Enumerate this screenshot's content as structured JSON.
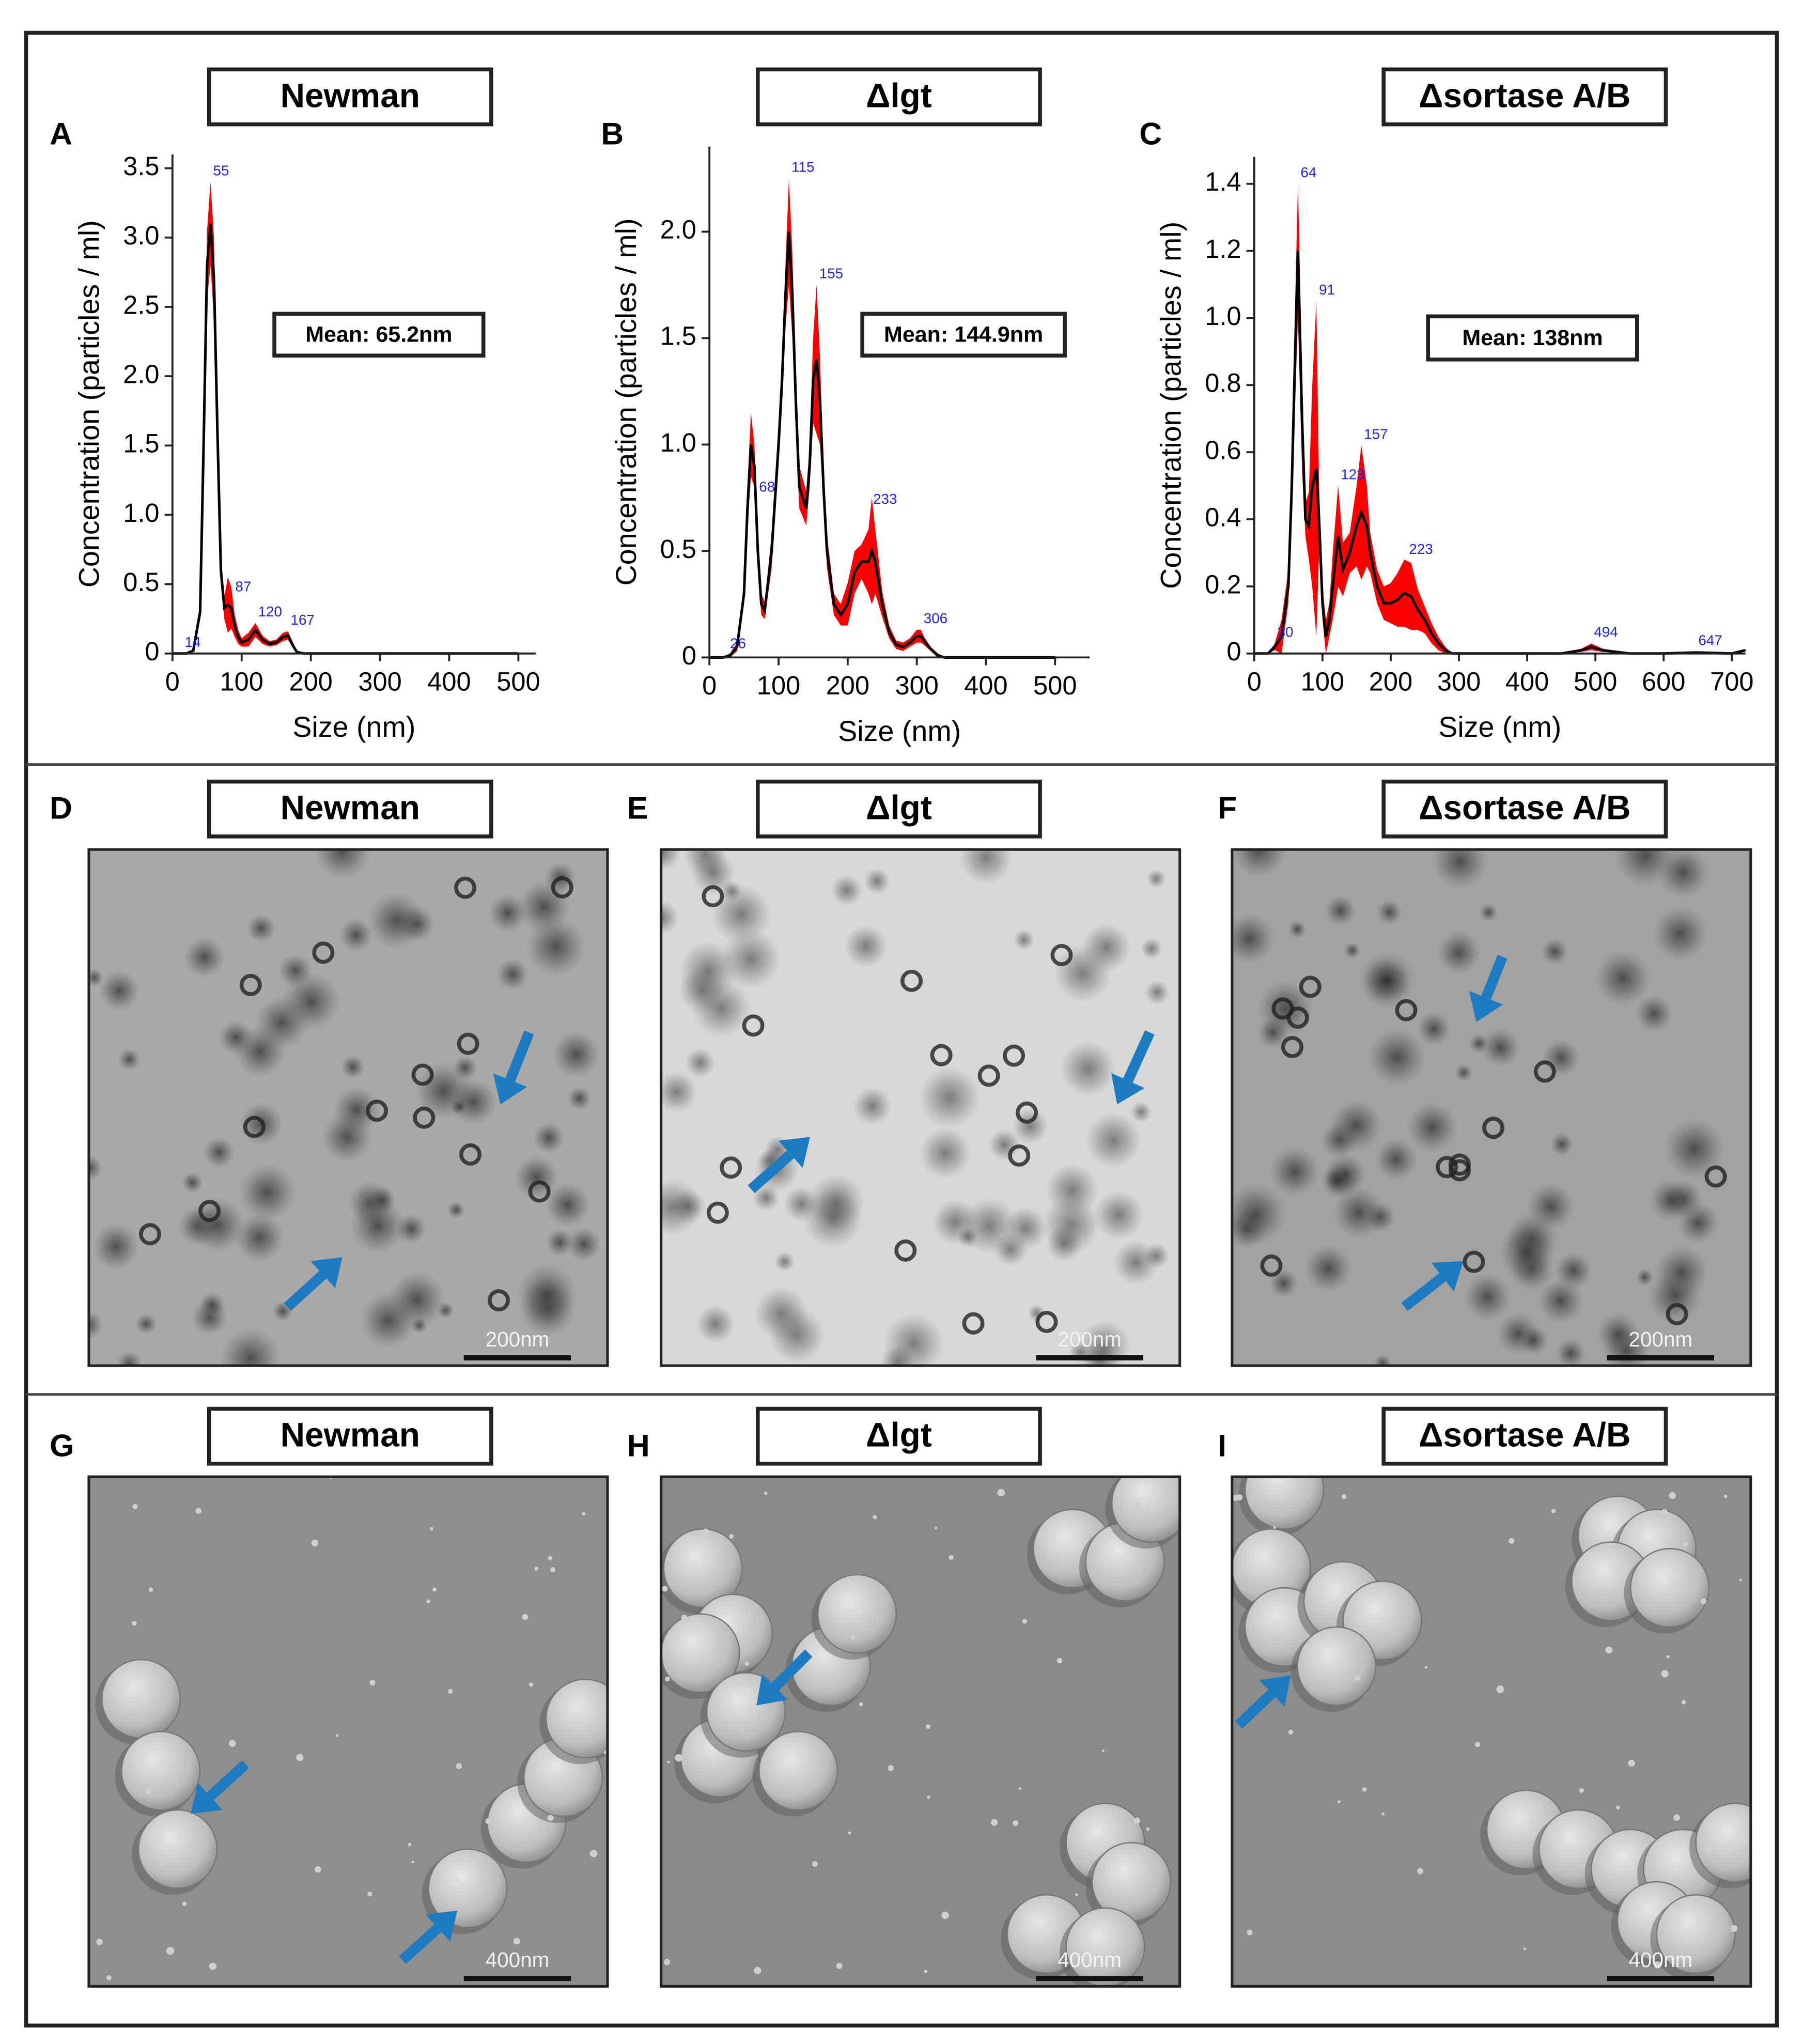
{
  "chart_data": [
    {
      "type": "line",
      "panel": "A",
      "title": "Newman",
      "annotation": "Mean: 65.2nm",
      "x_label": "Size (nm)",
      "y_label": "Concentration (particles / ml)",
      "x": [
        0,
        20,
        30,
        40,
        45,
        50,
        55,
        60,
        65,
        70,
        75,
        80,
        85,
        90,
        95,
        100,
        110,
        120,
        130,
        140,
        150,
        160,
        167,
        175,
        180,
        190,
        200,
        220,
        250,
        300,
        400,
        500
      ],
      "series": [
        {
          "color": "#000000",
          "error_color": "#ff0000",
          "values": [
            0,
            0,
            0.02,
            0.3,
            1.5,
            2.8,
            3.1,
            2.7,
            1.6,
            0.6,
            0.33,
            0.35,
            0.33,
            0.2,
            0.12,
            0.08,
            0.1,
            0.17,
            0.1,
            0.07,
            0.08,
            0.12,
            0.13,
            0.05,
            0.01,
            0,
            0,
            0,
            0,
            0,
            0,
            0
          ],
          "errors": [
            0,
            0,
            0.01,
            0.05,
            0.12,
            0.25,
            0.3,
            0.3,
            0.2,
            0.1,
            0.08,
            0.2,
            0.15,
            0.08,
            0.05,
            0.03,
            0.05,
            0.05,
            0.03,
            0.02,
            0.02,
            0.03,
            0.03,
            0.02,
            0.01,
            0,
            0,
            0,
            0,
            0,
            0,
            0
          ]
        }
      ],
      "peaks": [
        14,
        55,
        87,
        120,
        167
      ],
      "peak_color": "#2323e8",
      "xlim": [
        0,
        525
      ],
      "xticks": [
        0,
        100,
        200,
        300,
        400,
        500
      ],
      "ylim": [
        0,
        3.6
      ],
      "yticks": [
        0,
        0.5,
        {
          "value": 1,
          "label": "1.0"
        },
        1.5,
        {
          "value": 2,
          "label": "2.0"
        },
        2.5,
        {
          "value": 3,
          "label": "3.0"
        },
        3.5
      ]
    },
    {
      "type": "line",
      "panel": "B",
      "title": "Δlgt",
      "annotation": "Mean: 144.9nm",
      "x_label": "Size (nm)",
      "y_label": "Concentration (particles / ml)",
      "x": [
        0,
        20,
        30,
        40,
        50,
        55,
        60,
        65,
        70,
        75,
        80,
        90,
        100,
        105,
        110,
        115,
        120,
        125,
        130,
        140,
        145,
        150,
        155,
        160,
        165,
        170,
        180,
        190,
        200,
        210,
        220,
        230,
        235,
        240,
        250,
        260,
        270,
        280,
        290,
        300,
        306,
        310,
        320,
        330,
        340,
        400,
        500
      ],
      "series": [
        {
          "color": "#000000",
          "error_color": "#ff0000",
          "values": [
            0,
            0,
            0.01,
            0.05,
            0.3,
            0.7,
            1.0,
            0.9,
            0.5,
            0.25,
            0.22,
            0.5,
            1.0,
            1.3,
            1.7,
            2.0,
            1.7,
            1.2,
            0.8,
            0.7,
            0.9,
            1.3,
            1.4,
            1.2,
            0.8,
            0.5,
            0.25,
            0.2,
            0.25,
            0.4,
            0.45,
            0.45,
            0.5,
            0.45,
            0.25,
            0.12,
            0.06,
            0.05,
            0.07,
            0.1,
            0.1,
            0.08,
            0.04,
            0.01,
            0,
            0,
            0
          ],
          "errors": [
            0,
            0,
            0.01,
            0.02,
            0.05,
            0.1,
            0.15,
            0.1,
            0.08,
            0.05,
            0.04,
            0.08,
            0.1,
            0.12,
            0.15,
            0.25,
            0.2,
            0.15,
            0.1,
            0.08,
            0.1,
            0.2,
            0.35,
            0.2,
            0.1,
            0.08,
            0.05,
            0.05,
            0.1,
            0.1,
            0.08,
            0.15,
            0.25,
            0.15,
            0.06,
            0.03,
            0.02,
            0.02,
            0.02,
            0.03,
            0.03,
            0.02,
            0.01,
            0.01,
            0,
            0,
            0
          ]
        }
      ],
      "peaks": [
        26,
        68,
        115,
        155,
        233,
        306
      ],
      "peak_color": "#2323e8",
      "xlim": [
        0,
        550
      ],
      "xticks": [
        0,
        100,
        200,
        300,
        400,
        500
      ],
      "ylim": [
        0,
        2.4
      ],
      "yticks": [
        0,
        0.5,
        {
          "value": 1,
          "label": "1.0"
        },
        1.5,
        {
          "value": 2,
          "label": "2.0"
        }
      ]
    },
    {
      "type": "line",
      "panel": "C",
      "title": "Δsortase A/B",
      "annotation": "Mean: 138nm",
      "x_label": "Size (nm)",
      "y_label": "Concentration (particles / ml)",
      "x": [
        0,
        20,
        30,
        40,
        50,
        55,
        60,
        64,
        70,
        75,
        80,
        85,
        91,
        95,
        100,
        105,
        110,
        115,
        123,
        130,
        140,
        150,
        157,
        165,
        170,
        180,
        190,
        200,
        210,
        220,
        230,
        240,
        250,
        260,
        270,
        280,
        290,
        300,
        310,
        350,
        400,
        450,
        480,
        494,
        510,
        550,
        600,
        647,
        700,
        720
      ],
      "series": [
        {
          "color": "#000000",
          "error_color": "#ff0000",
          "values": [
            0,
            0,
            0.02,
            0.05,
            0.2,
            0.5,
            0.9,
            1.2,
            0.7,
            0.4,
            0.38,
            0.5,
            0.55,
            0.4,
            0.15,
            0.05,
            0.1,
            0.2,
            0.35,
            0.25,
            0.3,
            0.38,
            0.42,
            0.38,
            0.3,
            0.2,
            0.15,
            0.15,
            0.16,
            0.18,
            0.17,
            0.13,
            0.1,
            0.06,
            0.03,
            0.01,
            0,
            0,
            0,
            0,
            0,
            0,
            0.01,
            0.02,
            0.01,
            0,
            0,
            0.003,
            0,
            0.01
          ],
          "errors": [
            0,
            0,
            0.01,
            0.05,
            0.05,
            0.1,
            0.15,
            0.2,
            0.15,
            0.05,
            0.1,
            0.3,
            0.5,
            0.1,
            0.05,
            0.05,
            0.05,
            0.1,
            0.15,
            0.08,
            0.06,
            0.12,
            0.2,
            0.12,
            0.06,
            0.05,
            0.05,
            0.06,
            0.08,
            0.1,
            0.1,
            0.06,
            0.04,
            0.03,
            0.02,
            0.01,
            0,
            0,
            0,
            0,
            0,
            0,
            0.005,
            0.01,
            0.005,
            0,
            0,
            0.002,
            0,
            0
          ]
        }
      ],
      "peaks": [
        30,
        64,
        91,
        123,
        157,
        223,
        494,
        647
      ],
      "peak_color": "#2323e8",
      "xlim": [
        0,
        720
      ],
      "xticks": [
        0,
        100,
        200,
        300,
        400,
        500,
        600,
        700
      ],
      "ylim": [
        0,
        1.48
      ],
      "yticks": [
        0,
        0.2,
        0.4,
        0.6,
        0.8,
        {
          "value": 1,
          "label": "1.0"
        },
        1.2,
        1.4
      ]
    }
  ],
  "micrograph_rows": [
    {
      "panels": [
        {
          "panel": "D",
          "title": "Newman",
          "scale_bar": "200nm"
        },
        {
          "panel": "E",
          "title": "Δlgt",
          "scale_bar": "200nm"
        },
        {
          "panel": "F",
          "title": "Δsortase A/B",
          "scale_bar": "200nm"
        }
      ]
    },
    {
      "panels": [
        {
          "panel": "G",
          "title": "Newman",
          "scale_bar": "400nm"
        },
        {
          "panel": "H",
          "title": "Δlgt",
          "scale_bar": "400nm"
        },
        {
          "panel": "I",
          "title": "Δsortase A/B",
          "scale_bar": "400nm"
        }
      ]
    }
  ]
}
